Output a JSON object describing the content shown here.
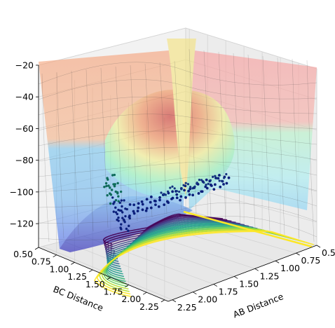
{
  "chart_data": {
    "type": "surface3d",
    "title": "",
    "x_axis": {
      "label": "AB Distance",
      "ticks": [
        "0.50",
        "0.75",
        "1.00",
        "1.25",
        "1.50",
        "1.75",
        "2.00",
        "2.25"
      ],
      "range": [
        0.5,
        2.3
      ]
    },
    "y_axis": {
      "label": "BC Distance",
      "ticks": [
        "0.50",
        "0.75",
        "1.00",
        "1.25",
        "1.50",
        "1.75",
        "2.00",
        "2.25"
      ],
      "range": [
        0.5,
        2.3
      ]
    },
    "z_axis": {
      "label": "",
      "ticks": [
        "−20",
        "−40",
        "−60",
        "−80",
        "−100",
        "−120"
      ],
      "values": [
        -20,
        -40,
        -60,
        -80,
        -100,
        -120
      ],
      "range": [
        -135,
        -20
      ]
    },
    "surface": {
      "colormap": "jet",
      "alpha": 0.35,
      "description_values": {
        "barrier_height_approx": -45,
        "valley_min_approx": -110,
        "plateau_level_approx": -70
      }
    },
    "contours": {
      "colormap": "viridis",
      "plane": "z-min"
    },
    "trajectory": {
      "color": "#0b1f7a",
      "highlight_color": "#0e6b5a",
      "points_approx": [
        {
          "ab": 0.75,
          "bc": 2.2,
          "z": -105
        },
        {
          "ab": 0.75,
          "bc": 1.6,
          "z": -103
        },
        {
          "ab": 0.85,
          "bc": 1.2,
          "z": -100
        },
        {
          "ab": 1.0,
          "bc": 0.95,
          "z": -95
        },
        {
          "ab": 1.4,
          "bc": 0.8,
          "z": -100
        },
        {
          "ab": 2.0,
          "bc": 0.75,
          "z": -108
        }
      ]
    },
    "grid": true,
    "colors": {
      "pane": "#f2f2f2",
      "grid": "#d9d9d9"
    }
  }
}
